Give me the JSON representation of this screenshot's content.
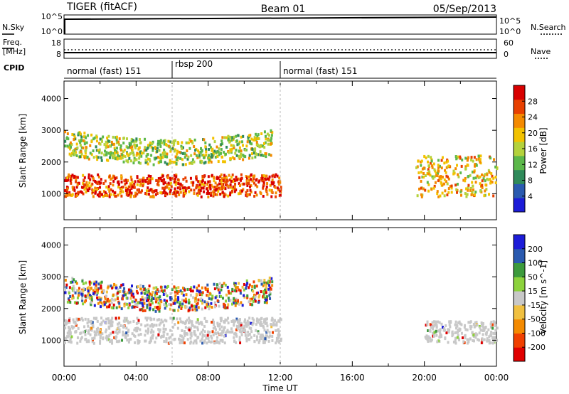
{
  "header": {
    "radar": "TIGER (fitACF)",
    "beam": "Beam 01",
    "date": "05/Sep/2013"
  },
  "top_panels": {
    "nsky_label": "N.Sky",
    "nsky_ticks": [
      "10^5",
      "10^0"
    ],
    "nsearch_label": "N.Search",
    "nsearch_ticks": [
      "10^5",
      "10^0"
    ],
    "freq_label_1": "Freq.",
    "freq_label_2": "[MHz]",
    "freq_ticks": [
      "18",
      "8"
    ],
    "nave_label": "Nave",
    "nave_ticks": [
      "60",
      "0"
    ],
    "cpid_label": "CPID",
    "cpid_segments": [
      {
        "label": "normal (fast) 151",
        "start": 0.0
      },
      {
        "label": "rbsp 200",
        "start": 6.0
      },
      {
        "label": "normal (fast) 151",
        "start": 12.0
      }
    ]
  },
  "chart_data": [
    {
      "type": "heatmap",
      "ylabel": "Slant Range [km]",
      "ylim": [
        180,
        4550
      ],
      "yticks": [
        1000,
        2000,
        3000,
        4000
      ],
      "xlim": [
        0,
        24
      ],
      "colorbar": {
        "label": "Power [dB]",
        "ticks": [
          "28",
          "24",
          "20",
          "16",
          "12",
          "8",
          "4"
        ],
        "colors": [
          "#1c1cd8",
          "#2a5ab0",
          "#2f8a5a",
          "#5cb84a",
          "#b4d23c",
          "#f2c200",
          "#f48a00",
          "#e84000",
          "#d80000"
        ]
      },
      "regions": [
        {
          "name": "near-range band",
          "t": [
            0.0,
            12.0
          ],
          "range_km": [
            900,
            1600
          ],
          "power_db": 26
        },
        {
          "name": "upper ionospheric echoes",
          "t": [
            0.0,
            11.5
          ],
          "range_km": [
            1800,
            3000
          ],
          "power_db": 14
        },
        {
          "name": "late band",
          "t": [
            19.5,
            24.0
          ],
          "range_km": [
            900,
            2200
          ],
          "power_db": 20
        }
      ]
    },
    {
      "type": "heatmap",
      "ylabel": "Slant Range [km]",
      "ylim": [
        180,
        4550
      ],
      "yticks": [
        1000,
        2000,
        3000,
        4000
      ],
      "xlim": [
        0,
        24
      ],
      "xticks": [
        "00:00",
        "04:00",
        "08:00",
        "12:00",
        "16:00",
        "20:00",
        "00:00"
      ],
      "xlabel": "Time UT",
      "colorbar": {
        "label": "Velocity [m s^-1]",
        "ticks": [
          "200",
          "100",
          "50",
          "15",
          "-15",
          "-50",
          "-100",
          "-200"
        ],
        "colors": [
          "#e00000",
          "#f04000",
          "#f48a00",
          "#f0c040",
          "#c8c8c8",
          "#8cd23c",
          "#3c9a3c",
          "#2a5ab0",
          "#1c1cd8"
        ]
      },
      "regions": [
        {
          "name": "ground scatter",
          "t": [
            0.0,
            12.0
          ],
          "range_km": [
            900,
            1700
          ],
          "velocity": 0
        },
        {
          "name": "ionospheric scatter",
          "t": [
            0.0,
            11.5
          ],
          "range_km": [
            1800,
            3000
          ],
          "velocity": -50
        },
        {
          "name": "late ground scatter",
          "t": [
            20.0,
            24.0
          ],
          "range_km": [
            900,
            1600
          ],
          "velocity": 0
        }
      ]
    }
  ]
}
